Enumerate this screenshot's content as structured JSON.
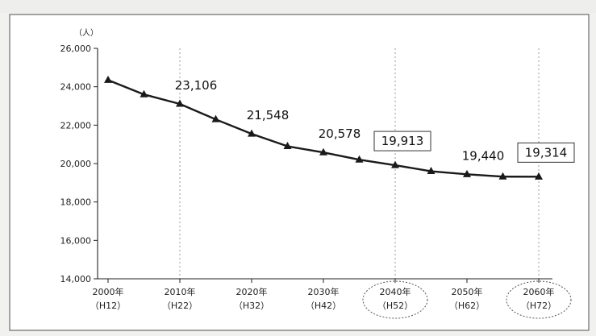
{
  "chart_data": {
    "type": "line",
    "unit_label": "（人）",
    "title": "",
    "xlabel": "",
    "ylabel": "",
    "ylim": [
      14000,
      26000
    ],
    "yticks": [
      {
        "value": 26000,
        "label": "26,000"
      },
      {
        "value": 24000,
        "label": "24,000"
      },
      {
        "value": 22000,
        "label": "22,000"
      },
      {
        "value": 20000,
        "label": "20,000"
      },
      {
        "value": 18000,
        "label": "18,000"
      },
      {
        "value": 16000,
        "label": "16,000"
      },
      {
        "value": 14000,
        "label": "14,000"
      }
    ],
    "xlim": [
      2000,
      2060
    ],
    "xticks": [
      {
        "value": 2000,
        "label": "2000年",
        "sub": "（H12）"
      },
      {
        "value": 2010,
        "label": "2010年",
        "sub": "（H22）"
      },
      {
        "value": 2020,
        "label": "2020年",
        "sub": "（H32）"
      },
      {
        "value": 2030,
        "label": "2030年",
        "sub": "（H42）"
      },
      {
        "value": 2040,
        "label": "2040年",
        "sub": "（H52）"
      },
      {
        "value": 2050,
        "label": "2050年",
        "sub": "（H62）"
      },
      {
        "value": 2060,
        "label": "2060年",
        "sub": "（H72）"
      }
    ],
    "circled_ticks": [
      2040,
      2060
    ],
    "reference_lines_x": [
      2010,
      2040,
      2060
    ],
    "series": [
      {
        "x": [
          2000,
          2005,
          2010,
          2015,
          2020,
          2025,
          2030,
          2035,
          2040,
          2045,
          2050,
          2055,
          2060
        ],
        "y": [
          24350,
          23600,
          23106,
          22300,
          21548,
          20900,
          20578,
          20200,
          19913,
          19600,
          19440,
          19320,
          19314
        ],
        "color": "#1a1a1a",
        "marker": "triangle"
      }
    ],
    "data_labels": [
      {
        "x": 2010,
        "y": 23106,
        "text": "23,106",
        "boxed": false
      },
      {
        "x": 2020,
        "y": 21548,
        "text": "21,548",
        "boxed": false
      },
      {
        "x": 2030,
        "y": 20578,
        "text": "20,578",
        "boxed": false
      },
      {
        "x": 2040,
        "y": 19913,
        "text": "19,913",
        "boxed": true
      },
      {
        "x": 2050,
        "y": 19440,
        "text": "19,440",
        "boxed": false
      },
      {
        "x": 2060,
        "y": 19314,
        "text": "19,314",
        "boxed": true
      }
    ]
  }
}
